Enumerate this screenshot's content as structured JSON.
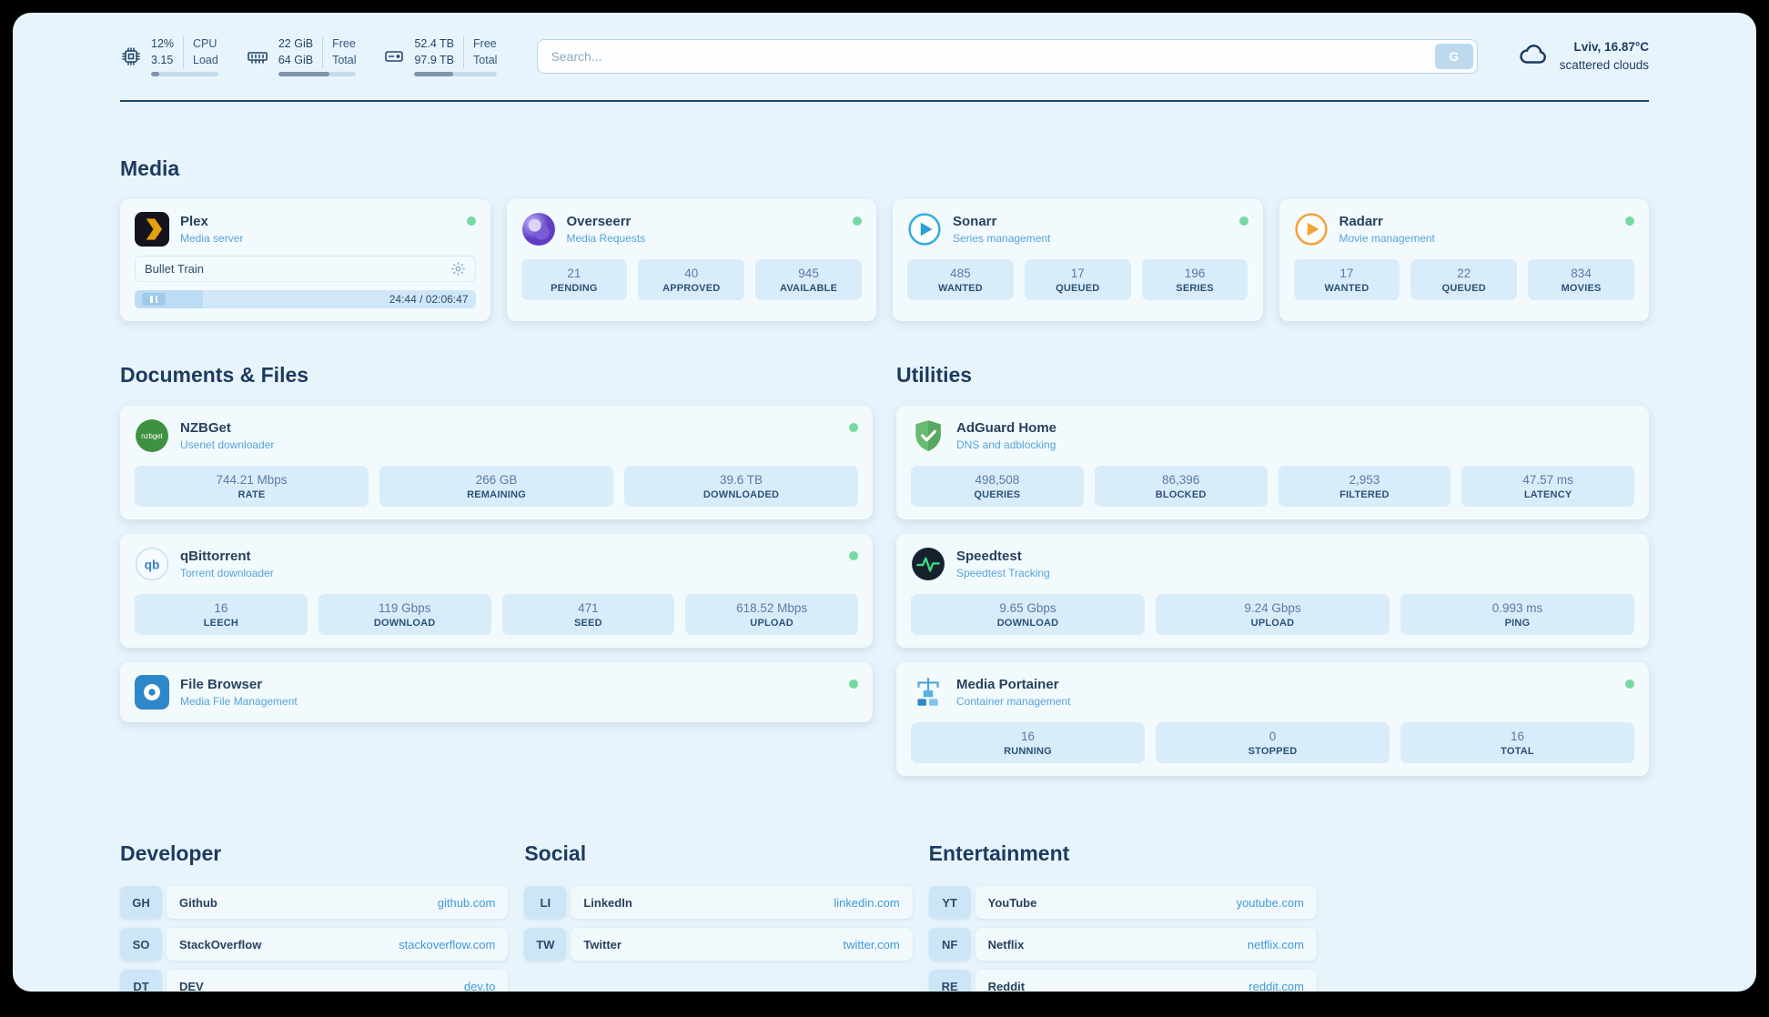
{
  "colors": {
    "page-bg": "#e8f4fc",
    "card-bg": "#f3fafe",
    "stat-bg": "#d9ecfa",
    "accent-blue": "#3e9ad8",
    "heading": "#1d3a5f",
    "status-online": "#76d9a1"
  },
  "icons": {
    "nzbget_label": "nzbget",
    "qbittorrent_label": "qb"
  },
  "topbar": {
    "cpu": {
      "value1": "12%",
      "value2": "3.15",
      "label1": "CPU",
      "label2": "Load",
      "percent": 12
    },
    "ram": {
      "value1": "22 GiB",
      "value2": "64 GiB",
      "label1": "Free",
      "label2": "Total",
      "percent": 66
    },
    "disk": {
      "value1": "52.4 TB",
      "value2": "97.9 TB",
      "label1": "Free",
      "label2": "Total",
      "percent": 47
    },
    "search": {
      "placeholder": "Search...",
      "button_label": "G"
    },
    "weather": {
      "location": "Lviv, 16.87°C",
      "condition": "scattered clouds"
    }
  },
  "sections": {
    "media": {
      "title": "Media",
      "plex": {
        "name": "Plex",
        "subtitle": "Media server",
        "now_playing": "Bullet Train",
        "time": "24:44 / 02:06:47",
        "progress_percent": 20
      },
      "overseerr": {
        "name": "Overseerr",
        "subtitle": "Media Requests",
        "stats": [
          {
            "value": "21",
            "label": "PENDING"
          },
          {
            "value": "40",
            "label": "APPROVED"
          },
          {
            "value": "945",
            "label": "AVAILABLE"
          }
        ]
      },
      "sonarr": {
        "name": "Sonarr",
        "subtitle": "Series management",
        "stats": [
          {
            "value": "485",
            "label": "WANTED"
          },
          {
            "value": "17",
            "label": "QUEUED"
          },
          {
            "value": "196",
            "label": "SERIES"
          }
        ]
      },
      "radarr": {
        "name": "Radarr",
        "subtitle": "Movie management",
        "stats": [
          {
            "value": "17",
            "label": "WANTED"
          },
          {
            "value": "22",
            "label": "QUEUED"
          },
          {
            "value": "834",
            "label": "MOVIES"
          }
        ]
      }
    },
    "documents": {
      "title": "Documents & Files",
      "nzbget": {
        "name": "NZBGet",
        "subtitle": "Usenet downloader",
        "stats": [
          {
            "value": "744.21 Mbps",
            "label": "RATE"
          },
          {
            "value": "266 GB",
            "label": "REMAINING"
          },
          {
            "value": "39.6 TB",
            "label": "DOWNLOADED"
          }
        ]
      },
      "qbittorrent": {
        "name": "qBittorrent",
        "subtitle": "Torrent downloader",
        "stats": [
          {
            "value": "16",
            "label": "LEECH"
          },
          {
            "value": "119 Gbps",
            "label": "DOWNLOAD"
          },
          {
            "value": "471",
            "label": "SEED"
          },
          {
            "value": "618.52 Mbps",
            "label": "UPLOAD"
          }
        ]
      },
      "filebrowser": {
        "name": "File Browser",
        "subtitle": "Media File Management"
      }
    },
    "utilities": {
      "title": "Utilities",
      "adguard": {
        "name": "AdGuard Home",
        "subtitle": "DNS and adblocking",
        "stats": [
          {
            "value": "498,508",
            "label": "QUERIES"
          },
          {
            "value": "86,396",
            "label": "BLOCKED"
          },
          {
            "value": "2,953",
            "label": "FILTERED"
          },
          {
            "value": "47.57 ms",
            "label": "LATENCY"
          }
        ]
      },
      "speedtest": {
        "name": "Speedtest",
        "subtitle": "Speedtest Tracking",
        "stats": [
          {
            "value": "9.65 Gbps",
            "label": "DOWNLOAD"
          },
          {
            "value": "9.24 Gbps",
            "label": "UPLOAD"
          },
          {
            "value": "0.993 ms",
            "label": "PING"
          }
        ]
      },
      "portainer": {
        "name": "Media Portainer",
        "subtitle": "Container management",
        "stats": [
          {
            "value": "16",
            "label": "RUNNING"
          },
          {
            "value": "0",
            "label": "STOPPED"
          },
          {
            "value": "16",
            "label": "TOTAL"
          }
        ]
      }
    },
    "developer": {
      "title": "Developer",
      "links": [
        {
          "abbr": "GH",
          "name": "Github",
          "url": "github.com"
        },
        {
          "abbr": "SO",
          "name": "StackOverflow",
          "url": "stackoverflow.com"
        },
        {
          "abbr": "DT",
          "name": "DEV",
          "url": "dev.to"
        }
      ]
    },
    "social": {
      "title": "Social",
      "links": [
        {
          "abbr": "LI",
          "name": "LinkedIn",
          "url": "linkedin.com"
        },
        {
          "abbr": "TW",
          "name": "Twitter",
          "url": "twitter.com"
        }
      ]
    },
    "entertainment": {
      "title": "Entertainment",
      "links": [
        {
          "abbr": "YT",
          "name": "YouTube",
          "url": "youtube.com"
        },
        {
          "abbr": "NF",
          "name": "Netflix",
          "url": "netflix.com"
        },
        {
          "abbr": "RE",
          "name": "Reddit",
          "url": "reddit.com"
        }
      ]
    }
  }
}
